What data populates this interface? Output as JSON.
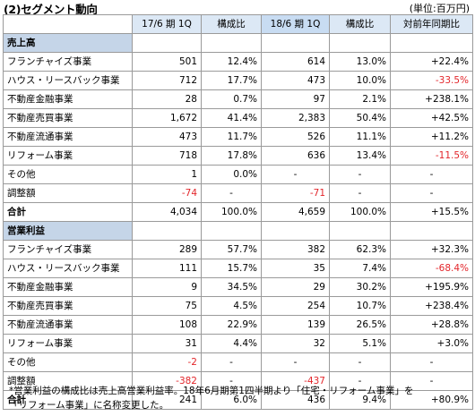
{
  "header": {
    "title": "(2)セグメント動向",
    "unit": "(単位:百万円)"
  },
  "columns": [
    "17/6 期 1Q",
    "構成比",
    "18/6 期 1Q",
    "構成比",
    "対前年同期比"
  ],
  "sections": [
    {
      "title": "売上高",
      "rows": [
        {
          "label": "フランチャイズ事業",
          "cells": [
            "501",
            "12.4%",
            "614",
            "13.0%",
            "+22.4%"
          ],
          "neg": []
        },
        {
          "label": "ハウス・リースバック事業",
          "cells": [
            "712",
            "17.7%",
            "473",
            "10.0%",
            "-33.5%"
          ],
          "neg": [
            4
          ]
        },
        {
          "label": "不動産金融事業",
          "cells": [
            "28",
            "0.7%",
            "97",
            "2.1%",
            "+238.1%"
          ],
          "neg": []
        },
        {
          "label": "不動産売買事業",
          "cells": [
            "1,672",
            "41.4%",
            "2,383",
            "50.4%",
            "+42.5%"
          ],
          "neg": []
        },
        {
          "label": "不動産流通事業",
          "cells": [
            "473",
            "11.7%",
            "526",
            "11.1%",
            "+11.2%"
          ],
          "neg": []
        },
        {
          "label": "リフォーム事業",
          "cells": [
            "718",
            "17.8%",
            "636",
            "13.4%",
            "-11.5%"
          ],
          "neg": [
            4
          ]
        },
        {
          "label": "その他",
          "cells": [
            "1",
            "0.0%",
            "-",
            "-",
            "-"
          ],
          "neg": []
        },
        {
          "label": "調整額",
          "cells": [
            "-74",
            "-",
            "-71",
            "-",
            "-"
          ],
          "neg": [
            0,
            2
          ]
        },
        {
          "label": "合計",
          "cells": [
            "4,034",
            "100.0%",
            "4,659",
            "100.0%",
            "+15.5%"
          ],
          "neg": [],
          "total": true
        }
      ]
    },
    {
      "title": "営業利益",
      "rows": [
        {
          "label": "フランチャイズ事業",
          "cells": [
            "289",
            "57.7%",
            "382",
            "62.3%",
            "+32.3%"
          ],
          "neg": []
        },
        {
          "label": "ハウス・リースバック事業",
          "cells": [
            "111",
            "15.7%",
            "35",
            "7.4%",
            "-68.4%"
          ],
          "neg": [
            4
          ]
        },
        {
          "label": "不動産金融事業",
          "cells": [
            "9",
            "34.5%",
            "29",
            "30.2%",
            "+195.9%"
          ],
          "neg": []
        },
        {
          "label": "不動産売買事業",
          "cells": [
            "75",
            "4.5%",
            "254",
            "10.7%",
            "+238.4%"
          ],
          "neg": []
        },
        {
          "label": "不動産流通事業",
          "cells": [
            "108",
            "22.9%",
            "139",
            "26.5%",
            "+28.8%"
          ],
          "neg": []
        },
        {
          "label": "リフォーム事業",
          "cells": [
            "31",
            "4.4%",
            "32",
            "5.1%",
            "+3.0%"
          ],
          "neg": []
        },
        {
          "label": "その他",
          "cells": [
            "-2",
            "-",
            "-",
            "-",
            "-"
          ],
          "neg": [
            0
          ]
        },
        {
          "label": "調整額",
          "cells": [
            "-382",
            "-",
            "-437",
            "-",
            "-"
          ],
          "neg": [
            0,
            2
          ]
        },
        {
          "label": "合計",
          "cells": [
            "241",
            "6.0%",
            "436",
            "9.4%",
            "+80.9%"
          ],
          "neg": [],
          "total": true
        }
      ]
    }
  ],
  "footnote": {
    "line1": "*営業利益の構成比は売上高営業利益率。18年6月期第1四半期より「住宅・リフォーム事業」を",
    "line2": "「リフォーム事業」に名称変更した。"
  },
  "colors": {
    "header_bg": "#dce8f5",
    "header_bg_blue": "#c8dcf2",
    "section_bg": "#c5d5e8",
    "negative": "#e3262b",
    "border": "#9a9a9a"
  }
}
